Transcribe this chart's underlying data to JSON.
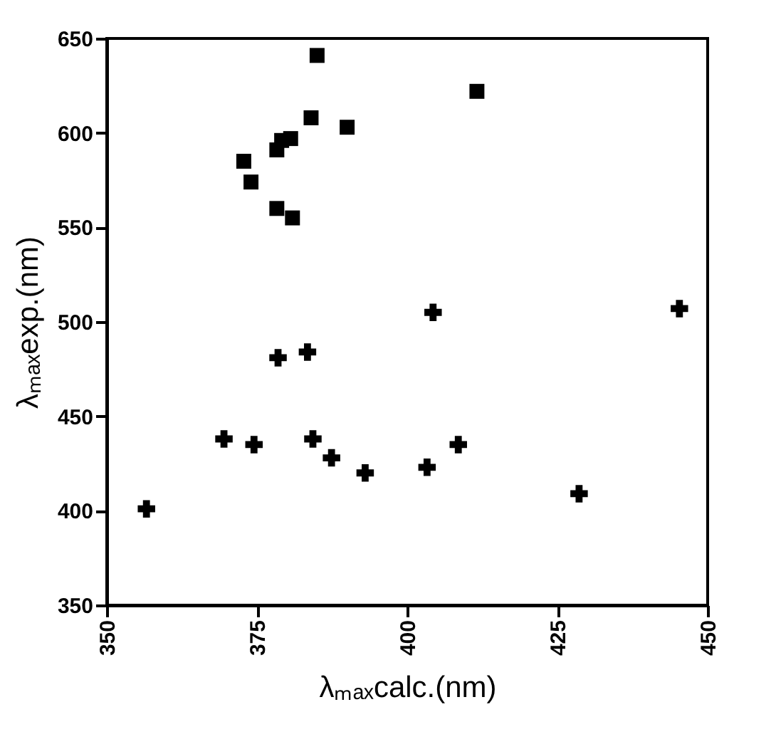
{
  "chart_data": {
    "type": "scatter",
    "xlabel": "λₘₐₓcalc.(nm)",
    "ylabel": "λₘₐₓexp.(nm)",
    "xlim": [
      350,
      450
    ],
    "xticks": [
      350,
      375,
      400,
      425,
      450
    ],
    "ylim": [
      350,
      650
    ],
    "yticks": [
      350,
      400,
      450,
      500,
      550,
      600,
      650
    ],
    "grid": false,
    "series": [
      {
        "color": "#000000",
        "marker": "square",
        "x": [
          385,
          411.6,
          384,
          390,
          378.3,
          379.1,
          380.6,
          372.8,
          374,
          378.3,
          380.9
        ],
        "values": [
          641,
          622,
          608,
          603,
          591,
          596,
          597,
          585,
          574,
          560,
          555
        ]
      },
      {
        "color": "#000000",
        "marker": "cross",
        "x": [
          404.3,
          445.3,
          378.5,
          383.4,
          356.6,
          369.5,
          374.5,
          384.3,
          387.4,
          393,
          403.3,
          408.5,
          428.6
        ],
        "values": [
          505,
          507,
          481,
          484,
          401,
          438,
          435,
          438,
          428,
          420,
          423,
          435,
          409
        ]
      }
    ]
  }
}
